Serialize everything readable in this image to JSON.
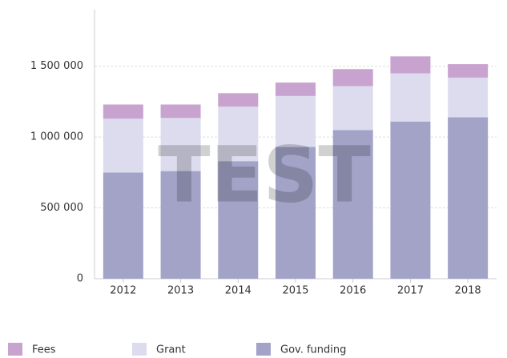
{
  "chart_data": {
    "type": "stacked_bar",
    "watermark": "TEST",
    "categories": [
      "2012",
      "2013",
      "2014",
      "2015",
      "2016",
      "2017",
      "2018"
    ],
    "series": [
      {
        "name": "Fees",
        "color": "#c8a3cf",
        "values": [
          100000,
          95000,
          95000,
          95000,
          120000,
          120000,
          95000
        ]
      },
      {
        "name": "Grant",
        "color": "#dcdcee",
        "values": [
          380000,
          375000,
          385000,
          360000,
          310000,
          340000,
          280000
        ]
      },
      {
        "name": "Gov. funding",
        "color": "#a3a3c8",
        "values": [
          750000,
          760000,
          830000,
          930000,
          1050000,
          1110000,
          1140000
        ]
      }
    ],
    "ylim": [
      0,
      1900000
    ],
    "yticks": [
      0,
      {
        "value": 500000,
        "label": "500 000"
      },
      {
        "value": 1000000,
        "label": "1 000 000"
      },
      {
        "value": 1500000,
        "label": "1 500 000"
      }
    ],
    "grid": true
  }
}
